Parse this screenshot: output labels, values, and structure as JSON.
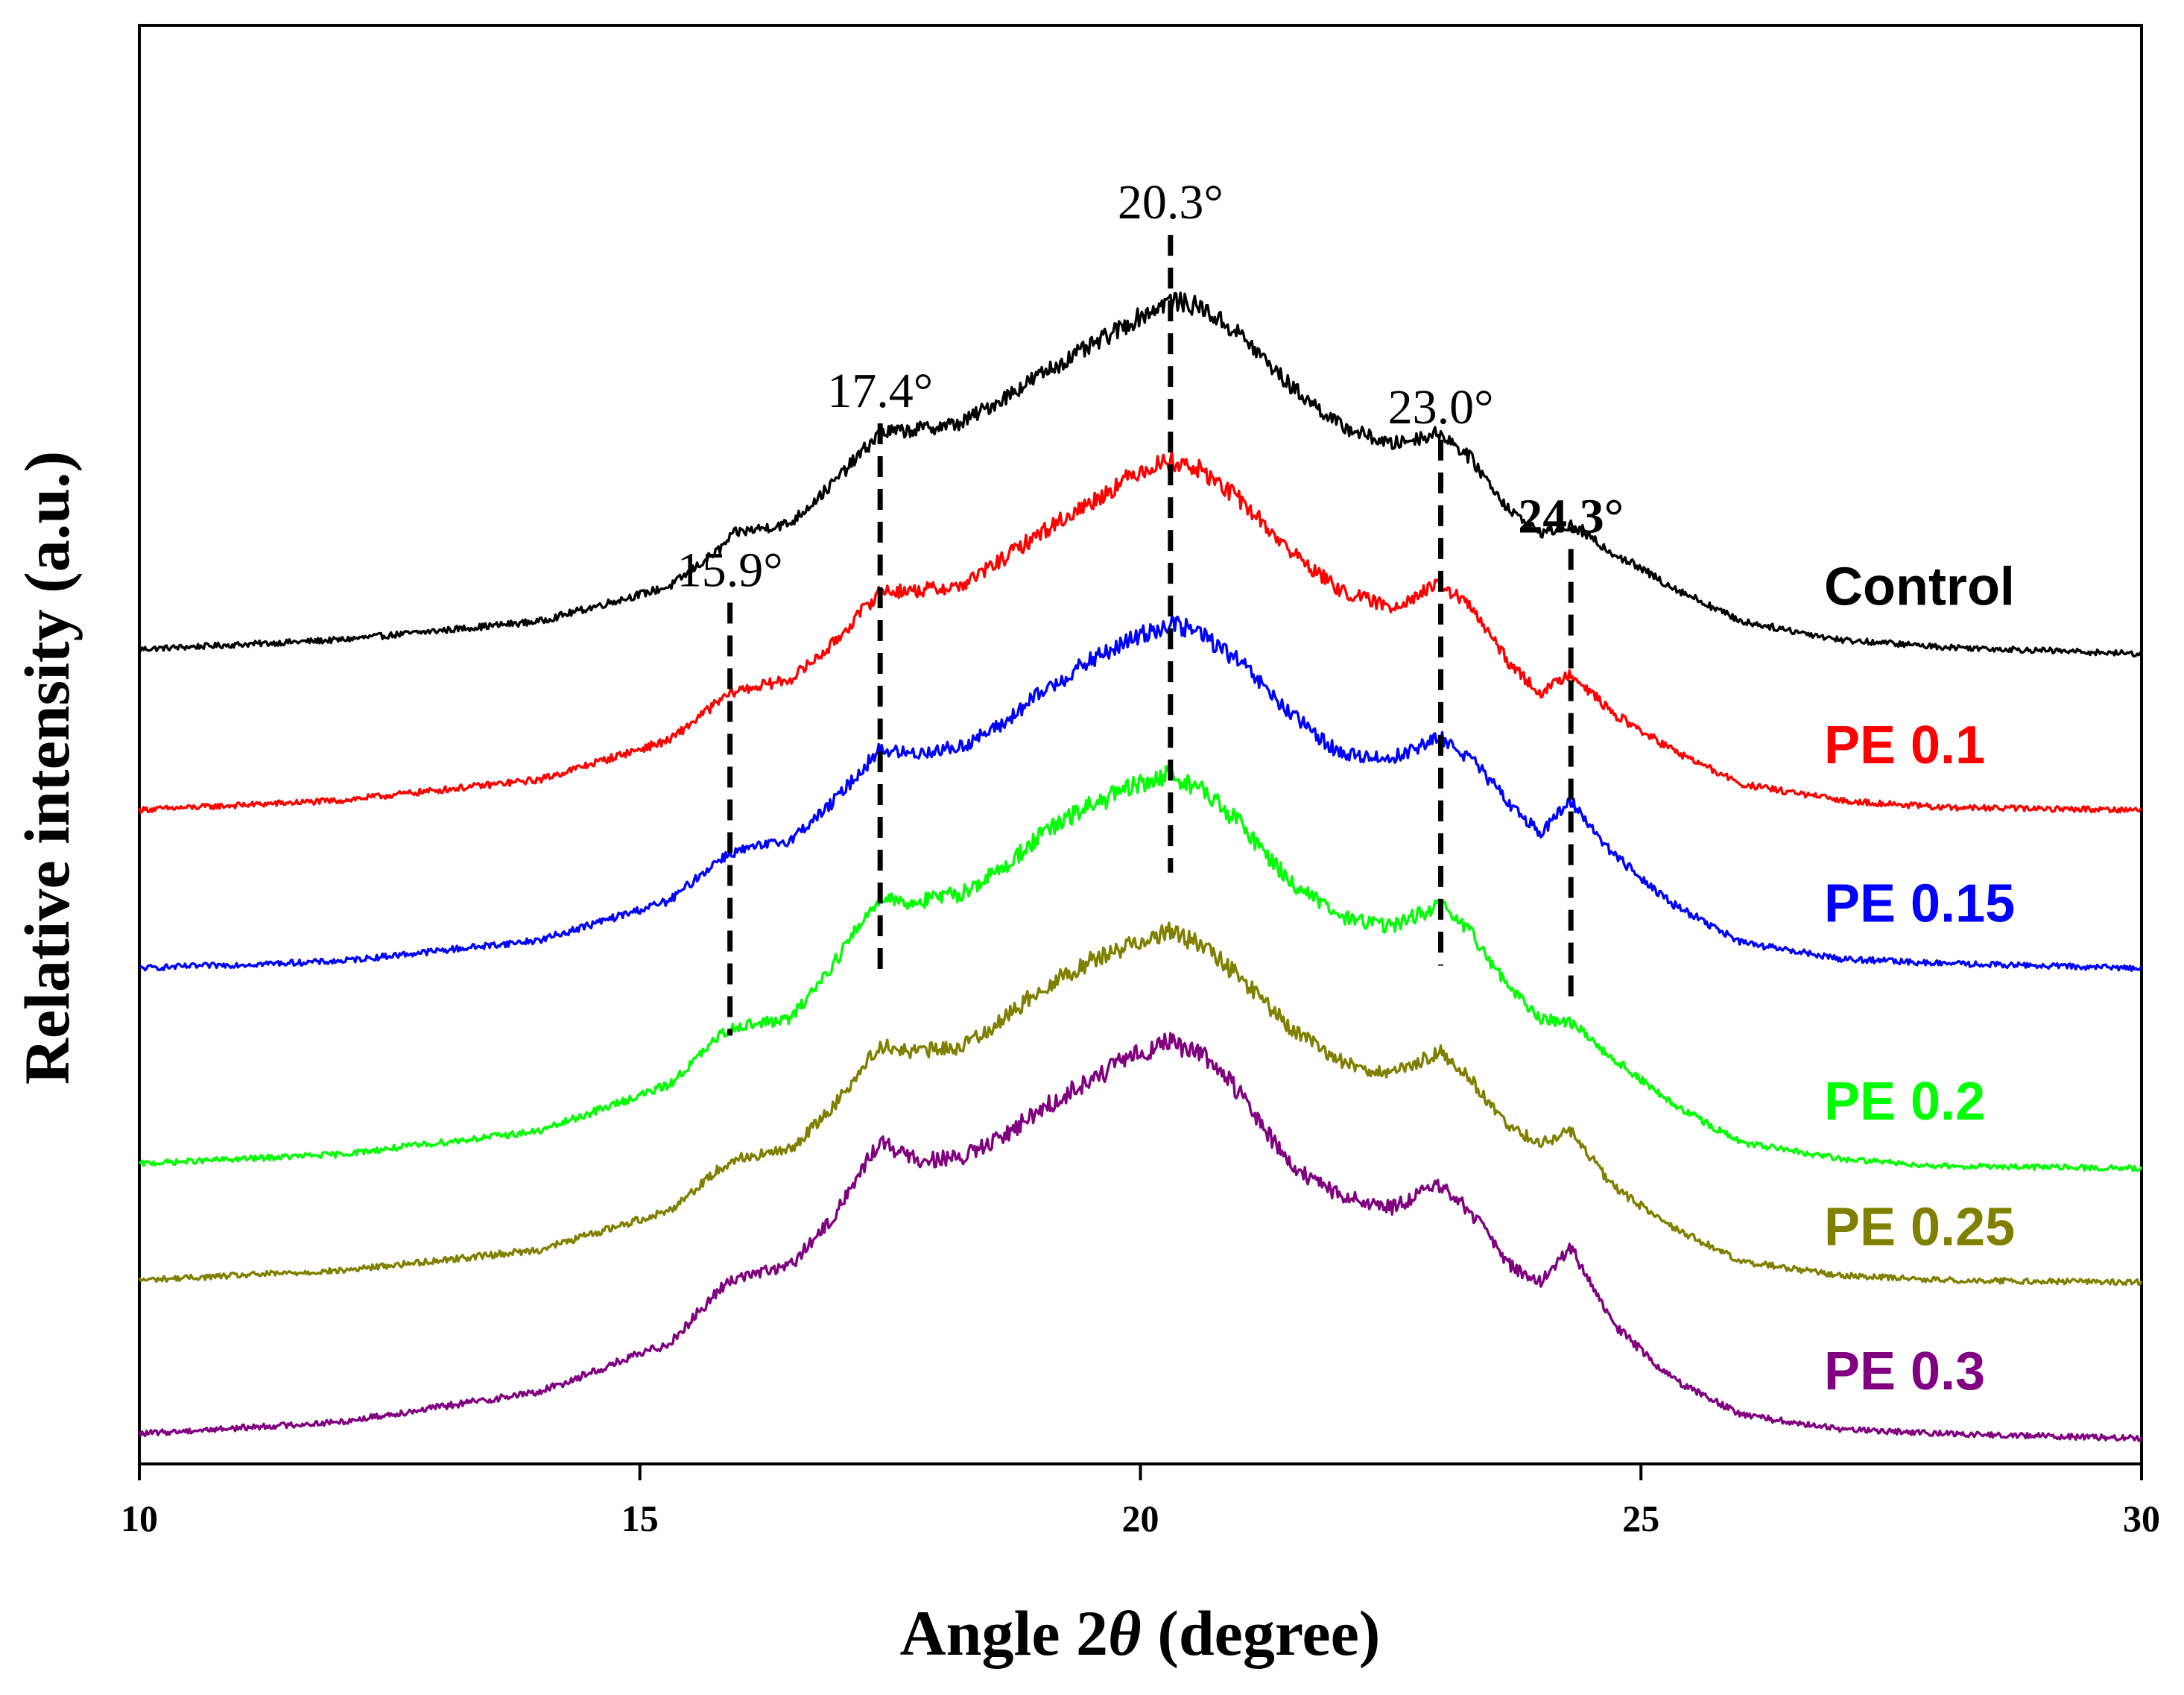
{
  "chart_data": {
    "type": "line",
    "title": "",
    "xlabel_prefix": "Angle 2",
    "xlabel_symbol": "θ",
    "xlabel_suffix": " (degree)",
    "ylabel": "Relative intensity (a.u.)",
    "xlim": [
      10,
      30
    ],
    "xticks": [
      {
        "value": 10,
        "label": "10"
      },
      {
        "value": 15,
        "label": "15"
      },
      {
        "value": 20,
        "label": "20"
      },
      {
        "value": 25,
        "label": "25"
      },
      {
        "value": 30,
        "label": "30"
      }
    ],
    "ylim": [
      -0.05,
      6.13
    ],
    "yticks_shown": false,
    "peaks": [
      {
        "position": 15.9,
        "label": "15.9°",
        "bold": false,
        "span": [
          1.79,
          3.65
        ]
      },
      {
        "position": 17.4,
        "label": "17.4°",
        "bold": false,
        "span": [
          2.05,
          4.42
        ]
      },
      {
        "position": 20.3,
        "label": "20.3°",
        "bold": false,
        "span": [
          2.49,
          5.23
        ]
      },
      {
        "position": 23.0,
        "label": "23.0°",
        "bold": false,
        "span": [
          2.09,
          4.35
        ]
      },
      {
        "position": 24.3,
        "label": "24.3°",
        "bold": true,
        "span": [
          1.93,
          3.88
        ]
      }
    ],
    "series": [
      {
        "name": "Control",
        "color": "#000000",
        "baseline": 3.45,
        "tail": 3.43,
        "points": [
          [
            10,
            3.45
          ],
          [
            12,
            3.49
          ],
          [
            14,
            3.57
          ],
          [
            15.3,
            3.72
          ],
          [
            15.8,
            3.88
          ],
          [
            15.95,
            3.95
          ],
          [
            16.5,
            3.99
          ],
          [
            16.9,
            4.15
          ],
          [
            17.4,
            4.38
          ],
          [
            17.7,
            4.39
          ],
          [
            18.2,
            4.42
          ],
          [
            18.6,
            4.52
          ],
          [
            19.0,
            4.63
          ],
          [
            19.5,
            4.75
          ],
          [
            20.0,
            4.88
          ],
          [
            20.3,
            4.95
          ],
          [
            20.6,
            4.92
          ],
          [
            21.0,
            4.8
          ],
          [
            21.5,
            4.58
          ],
          [
            22.0,
            4.41
          ],
          [
            22.5,
            4.33
          ],
          [
            23.0,
            4.38
          ],
          [
            23.3,
            4.27
          ],
          [
            23.7,
            4.04
          ],
          [
            24.0,
            3.95
          ],
          [
            24.3,
            3.98
          ],
          [
            24.7,
            3.87
          ],
          [
            25.3,
            3.72
          ],
          [
            26.0,
            3.57
          ],
          [
            27.0,
            3.49
          ],
          [
            28.0,
            3.46
          ],
          [
            30,
            3.43
          ]
        ]
      },
      {
        "name": "PE 0.1",
        "color": "#ff0000",
        "baseline": 2.76,
        "tail": 2.76,
        "points": [
          [
            10,
            2.76
          ],
          [
            12,
            2.8
          ],
          [
            14,
            2.89
          ],
          [
            15.3,
            3.06
          ],
          [
            15.8,
            3.23
          ],
          [
            15.95,
            3.27
          ],
          [
            16.5,
            3.32
          ],
          [
            16.9,
            3.46
          ],
          [
            17.4,
            3.7
          ],
          [
            17.7,
            3.7
          ],
          [
            18.2,
            3.72
          ],
          [
            18.6,
            3.83
          ],
          [
            19.0,
            3.95
          ],
          [
            19.5,
            4.08
          ],
          [
            20.0,
            4.22
          ],
          [
            20.3,
            4.26
          ],
          [
            20.6,
            4.22
          ],
          [
            21.0,
            4.09
          ],
          [
            21.5,
            3.87
          ],
          [
            22.0,
            3.7
          ],
          [
            22.5,
            3.63
          ],
          [
            23.0,
            3.73
          ],
          [
            23.3,
            3.63
          ],
          [
            23.7,
            3.38
          ],
          [
            24.0,
            3.26
          ],
          [
            24.3,
            3.35
          ],
          [
            24.7,
            3.18
          ],
          [
            25.3,
            3.02
          ],
          [
            26.0,
            2.87
          ],
          [
            27.0,
            2.8
          ],
          [
            28.0,
            2.77
          ],
          [
            30,
            2.76
          ]
        ]
      },
      {
        "name": "PE 0.15",
        "color": "#0000ff",
        "baseline": 2.08,
        "tail": 2.08,
        "points": [
          [
            10,
            2.08
          ],
          [
            12,
            2.11
          ],
          [
            14,
            2.2
          ],
          [
            15.3,
            2.37
          ],
          [
            15.8,
            2.55
          ],
          [
            15.95,
            2.58
          ],
          [
            16.5,
            2.63
          ],
          [
            16.9,
            2.78
          ],
          [
            17.4,
            3.02
          ],
          [
            17.7,
            3.0
          ],
          [
            18.2,
            3.03
          ],
          [
            18.6,
            3.12
          ],
          [
            19.0,
            3.26
          ],
          [
            19.5,
            3.4
          ],
          [
            20.0,
            3.51
          ],
          [
            20.3,
            3.56
          ],
          [
            20.6,
            3.52
          ],
          [
            21.0,
            3.39
          ],
          [
            21.5,
            3.17
          ],
          [
            22.0,
            3.0
          ],
          [
            22.5,
            2.98
          ],
          [
            23.0,
            3.07
          ],
          [
            23.3,
            2.98
          ],
          [
            23.7,
            2.78
          ],
          [
            24.0,
            2.66
          ],
          [
            24.3,
            2.8
          ],
          [
            24.7,
            2.58
          ],
          [
            25.3,
            2.36
          ],
          [
            26.0,
            2.19
          ],
          [
            27.0,
            2.12
          ],
          [
            28.0,
            2.1
          ],
          [
            30,
            2.08
          ]
        ]
      },
      {
        "name": "PE 0.2",
        "color": "#00ff00",
        "baseline": 1.24,
        "tail": 1.22,
        "points": [
          [
            10,
            1.24
          ],
          [
            12,
            1.28
          ],
          [
            14,
            1.38
          ],
          [
            15.3,
            1.58
          ],
          [
            15.8,
            1.79
          ],
          [
            15.95,
            1.83
          ],
          [
            16.5,
            1.86
          ],
          [
            16.9,
            2.08
          ],
          [
            17.4,
            2.39
          ],
          [
            17.7,
            2.36
          ],
          [
            18.2,
            2.4
          ],
          [
            18.6,
            2.5
          ],
          [
            19.0,
            2.65
          ],
          [
            19.5,
            2.78
          ],
          [
            20.0,
            2.87
          ],
          [
            20.3,
            2.91
          ],
          [
            20.6,
            2.85
          ],
          [
            21.0,
            2.7
          ],
          [
            21.5,
            2.45
          ],
          [
            22.0,
            2.3
          ],
          [
            22.5,
            2.26
          ],
          [
            23.0,
            2.35
          ],
          [
            23.3,
            2.23
          ],
          [
            23.7,
            1.99
          ],
          [
            24.0,
            1.86
          ],
          [
            24.3,
            1.85
          ],
          [
            24.7,
            1.7
          ],
          [
            25.3,
            1.5
          ],
          [
            26.0,
            1.33
          ],
          [
            27.0,
            1.26
          ],
          [
            28.0,
            1.23
          ],
          [
            30,
            1.22
          ]
        ]
      },
      {
        "name": "PE 0.25",
        "color": "#808000",
        "baseline": 0.74,
        "tail": 0.73,
        "points": [
          [
            10,
            0.74
          ],
          [
            12,
            0.78
          ],
          [
            14,
            0.87
          ],
          [
            15.3,
            1.04
          ],
          [
            15.8,
            1.22
          ],
          [
            15.95,
            1.26
          ],
          [
            16.5,
            1.3
          ],
          [
            16.9,
            1.47
          ],
          [
            17.4,
            1.75
          ],
          [
            17.7,
            1.72
          ],
          [
            18.2,
            1.74
          ],
          [
            18.6,
            1.85
          ],
          [
            19.0,
            1.99
          ],
          [
            19.5,
            2.11
          ],
          [
            20.0,
            2.2
          ],
          [
            20.3,
            2.24
          ],
          [
            20.6,
            2.18
          ],
          [
            21.0,
            2.04
          ],
          [
            21.5,
            1.82
          ],
          [
            22.0,
            1.68
          ],
          [
            22.5,
            1.62
          ],
          [
            23.0,
            1.72
          ],
          [
            23.3,
            1.6
          ],
          [
            23.7,
            1.39
          ],
          [
            24.0,
            1.33
          ],
          [
            24.3,
            1.38
          ],
          [
            24.7,
            1.15
          ],
          [
            25.3,
            0.97
          ],
          [
            26.0,
            0.82
          ],
          [
            27.0,
            0.76
          ],
          [
            28.0,
            0.74
          ],
          [
            30,
            0.73
          ]
        ]
      },
      {
        "name": "PE 0.3",
        "color": "#800080",
        "baseline": 0.08,
        "tail": 0.06,
        "points": [
          [
            10,
            0.08
          ],
          [
            12,
            0.13
          ],
          [
            14,
            0.26
          ],
          [
            15.3,
            0.47
          ],
          [
            15.8,
            0.7
          ],
          [
            15.95,
            0.75
          ],
          [
            16.5,
            0.8
          ],
          [
            16.9,
            0.99
          ],
          [
            17.4,
            1.34
          ],
          [
            17.7,
            1.26
          ],
          [
            18.2,
            1.26
          ],
          [
            18.6,
            1.35
          ],
          [
            19.0,
            1.47
          ],
          [
            19.5,
            1.6
          ],
          [
            20.0,
            1.72
          ],
          [
            20.3,
            1.76
          ],
          [
            20.6,
            1.72
          ],
          [
            21.0,
            1.54
          ],
          [
            21.5,
            1.23
          ],
          [
            22.0,
            1.1
          ],
          [
            22.5,
            1.05
          ],
          [
            23.0,
            1.15
          ],
          [
            23.3,
            1.03
          ],
          [
            23.7,
            0.8
          ],
          [
            24.0,
            0.73
          ],
          [
            24.3,
            0.88
          ],
          [
            24.7,
            0.56
          ],
          [
            25.3,
            0.32
          ],
          [
            26.0,
            0.16
          ],
          [
            27.0,
            0.1
          ],
          [
            28.0,
            0.08
          ],
          [
            30,
            0.06
          ]
        ]
      }
    ],
    "legend": [
      {
        "label": "Control",
        "color": "#000000",
        "level": 3.72
      },
      {
        "label": "PE 0.1",
        "color": "#ff0000",
        "level": 3.04
      },
      {
        "label": "PE 0.15",
        "color": "#0000ff",
        "level": 2.36
      },
      {
        "label": "PE 0.2",
        "color": "#00ff00",
        "level": 1.51
      },
      {
        "label": "PE 0.25",
        "color": "#808000",
        "level": 0.97
      },
      {
        "label": "PE 0.3",
        "color": "#800080",
        "level": 0.35
      }
    ]
  }
}
